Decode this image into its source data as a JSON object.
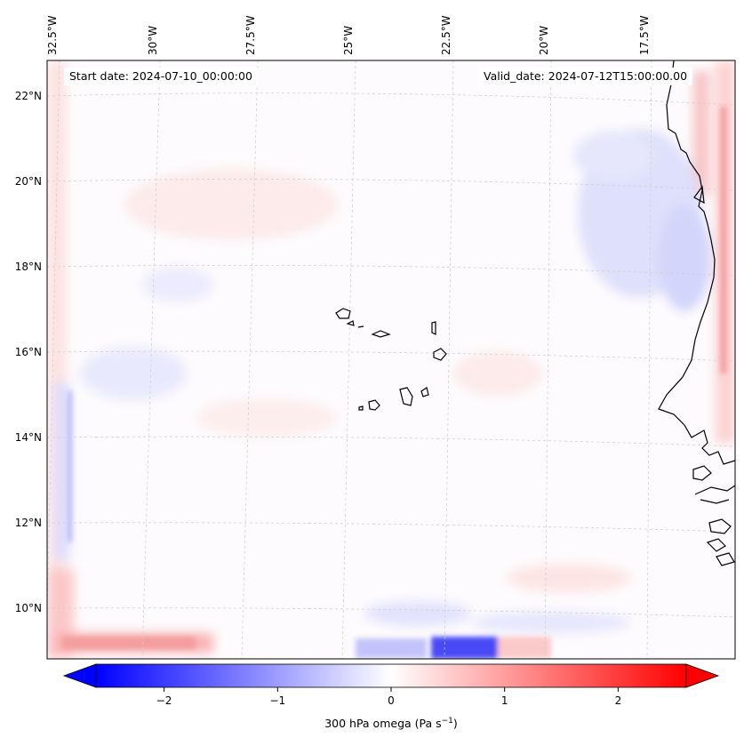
{
  "map": {
    "start_date_text": "Start date: 2024-07-10_00:00:00",
    "valid_date_text": "Valid_date: 2024-07-12T15:00:00.00",
    "lon_labels": [
      "32.5°W",
      "30°W",
      "27.5°W",
      "25°W",
      "22.5°W",
      "20°W",
      "17.5°W"
    ],
    "lat_labels": [
      "22°N",
      "20°N",
      "18°N",
      "16°N",
      "14°N",
      "12°N",
      "10°N"
    ],
    "lon_values": [
      -32.5,
      -30,
      -27.5,
      -25,
      -22.5,
      -20,
      -17.5
    ],
    "lat_values": [
      22,
      20,
      18,
      16,
      14,
      12,
      10
    ],
    "extent": {
      "lon_min": -32.6,
      "lon_max": -15.6,
      "lat_min": 8.9,
      "lat_max": 22.8
    },
    "field_description": "300 hPa omega, mostly near zero; weak negative band off Mauritania coast, boundary artifacts along edges",
    "coastline_color": "#000000",
    "gridline_color": "#cccccc"
  },
  "colorbar": {
    "ticks": [
      "−2",
      "−1",
      "0",
      "1",
      "2"
    ],
    "tick_values": [
      -2,
      -1,
      0,
      1,
      2
    ],
    "range": [
      -2.6,
      2.6
    ],
    "label_main": "300 hPa omega (Pa s",
    "label_sup": "−1",
    "label_end": ")",
    "colormap": "bwr",
    "color_min": "#0000ff",
    "color_mid": "#ffffff",
    "color_max": "#ff0000",
    "extend": "both"
  }
}
